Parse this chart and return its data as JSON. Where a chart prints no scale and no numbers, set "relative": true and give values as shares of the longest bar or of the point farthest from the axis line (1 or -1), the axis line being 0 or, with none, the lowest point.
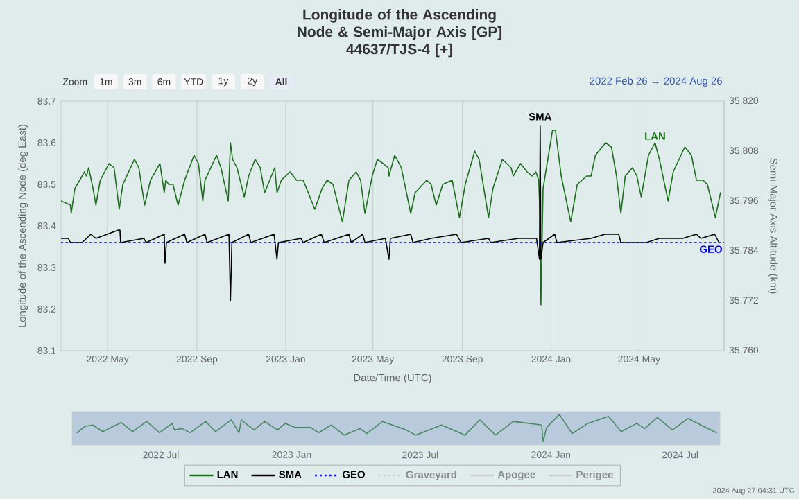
{
  "chart_data": [
    {
      "type": "line",
      "title": "Longitude of the Ascending Node & Semi-Major Axis [GP]",
      "subtitle": "44637/TJS-4 [+]",
      "xlabel": "Date/Time (UTC)",
      "ylabel": "Longitude of the Ascending Node (deg East)",
      "y2label": "Semi-Major Axis Altitude (km)",
      "annotations": [
        "Zoom",
        "1m",
        "3m",
        "6m",
        "YTD",
        "1y",
        "2y",
        "All",
        "2022 Feb 26 → 2024 Aug 26",
        "2024 Aug 27 04:31 UTC"
      ],
      "xlim": [
        "2022-02-26",
        "2024-08-26"
      ],
      "xticks": [
        {
          "value": "2022-05-01",
          "label": "2022 May"
        },
        {
          "value": "2022-09-01",
          "label": "2022 Sep"
        },
        {
          "value": "2023-01-01",
          "label": "2023 Jan"
        },
        {
          "value": "2023-05-01",
          "label": "2023 May"
        },
        {
          "value": "2023-09-01",
          "label": "2023 Sep"
        },
        {
          "value": "2024-01-01",
          "label": "2024 Jan"
        },
        {
          "value": "2024-05-01",
          "label": "2024 May"
        }
      ],
      "ylim": [
        83.1,
        83.7
      ],
      "yticks": [
        83.1,
        83.2,
        83.3,
        83.4,
        83.5,
        83.6,
        83.7
      ],
      "y2lim": [
        35760,
        35820
      ],
      "y2ticks": [
        {
          "value": 35760,
          "label": "35,760"
        },
        {
          "value": 35772,
          "label": "35,772"
        },
        {
          "value": 35784,
          "label": "35,784"
        },
        {
          "value": 35796,
          "label": "35,796"
        },
        {
          "value": 35808,
          "label": "35,808"
        },
        {
          "value": 35820,
          "label": "35,820"
        }
      ],
      "grid": "x",
      "legend": "bottom",
      "series": [
        {
          "name": "LAN",
          "color": "#1b6e1b",
          "x": [
            "2022-02-26",
            "2022-03-11",
            "2022-03-12",
            "2022-03-17",
            "2022-03-27",
            "2022-03-30",
            "2022-04-02",
            "2022-04-05",
            "2022-04-11",
            "2022-04-15",
            "2022-04-21",
            "2022-05-03",
            "2022-05-10",
            "2022-05-17",
            "2022-05-22",
            "2022-06-07",
            "2022-06-13",
            "2022-06-21",
            "2022-06-29",
            "2022-07-12",
            "2022-07-18",
            "2022-07-20",
            "2022-07-24",
            "2022-07-30",
            "2022-08-06",
            "2022-08-15",
            "2022-08-28",
            "2022-09-03",
            "2022-09-09",
            "2022-09-12",
            "2022-09-28",
            "2022-10-04",
            "2022-10-14",
            "2022-10-17",
            "2022-10-20",
            "2022-10-26",
            "2022-11-05",
            "2022-11-11",
            "2022-11-20",
            "2022-11-27",
            "2022-12-03",
            "2022-12-17",
            "2022-12-20",
            "2022-12-26",
            "2023-01-07",
            "2023-01-16",
            "2023-01-25",
            "2023-02-01",
            "2023-02-10",
            "2023-02-20",
            "2023-02-27",
            "2023-03-07",
            "2023-03-20",
            "2023-03-29",
            "2023-04-08",
            "2023-04-14",
            "2023-04-20",
            "2023-04-30",
            "2023-05-07",
            "2023-05-15",
            "2023-05-22",
            "2023-05-23",
            "2023-05-31",
            "2023-06-09",
            "2023-06-22",
            "2023-06-28",
            "2023-07-14",
            "2023-07-20",
            "2023-07-27",
            "2023-08-05",
            "2023-08-18",
            "2023-08-28",
            "2023-09-05",
            "2023-09-18",
            "2023-09-24",
            "2023-10-07",
            "2023-10-13",
            "2023-10-26",
            "2023-11-01",
            "2023-11-07",
            "2023-11-10",
            "2023-11-20",
            "2023-11-29",
            "2023-12-06",
            "2023-12-11",
            "2023-12-15",
            "2023-12-17",
            "2023-12-18",
            "2023-12-21",
            "2024-01-03",
            "2024-01-07",
            "2024-01-15",
            "2024-01-28",
            "2024-02-06",
            "2024-02-19",
            "2024-02-25",
            "2024-03-02",
            "2024-03-16",
            "2024-03-24",
            "2024-03-31",
            "2024-04-06",
            "2024-04-12",
            "2024-04-22",
            "2024-04-28",
            "2024-05-04",
            "2024-05-14",
            "2024-05-23",
            "2024-05-29",
            "2024-06-10",
            "2024-06-17",
            "2024-07-03",
            "2024-07-12",
            "2024-07-19",
            "2024-07-28",
            "2024-08-03",
            "2024-08-14",
            "2024-08-21"
          ],
          "values": [
            83.46,
            83.45,
            83.43,
            83.49,
            83.52,
            83.53,
            83.52,
            83.54,
            83.49,
            83.45,
            83.51,
            83.55,
            83.54,
            83.44,
            83.5,
            83.56,
            83.54,
            83.45,
            83.51,
            83.55,
            83.48,
            83.51,
            83.5,
            83.5,
            83.45,
            83.51,
            83.57,
            83.55,
            83.46,
            83.51,
            83.57,
            83.54,
            83.46,
            83.6,
            83.56,
            83.54,
            83.47,
            83.52,
            83.56,
            83.54,
            83.48,
            83.54,
            83.48,
            83.51,
            83.53,
            83.51,
            83.51,
            83.48,
            83.44,
            83.49,
            83.51,
            83.5,
            83.41,
            83.51,
            83.53,
            83.51,
            83.43,
            83.52,
            83.56,
            83.55,
            83.54,
            83.52,
            83.57,
            83.54,
            83.43,
            83.48,
            83.51,
            83.5,
            83.45,
            83.5,
            83.51,
            83.42,
            83.5,
            83.58,
            83.56,
            83.42,
            83.49,
            83.56,
            83.55,
            83.54,
            83.52,
            83.55,
            83.53,
            83.52,
            83.53,
            83.51,
            83.41,
            83.21,
            83.49,
            83.63,
            83.63,
            83.52,
            83.41,
            83.5,
            83.52,
            83.52,
            83.57,
            83.6,
            83.59,
            83.52,
            83.43,
            83.52,
            83.54,
            83.52,
            83.47,
            83.57,
            83.6,
            83.56,
            83.46,
            83.53,
            83.59,
            83.57,
            83.51,
            83.51,
            83.5,
            83.42,
            83.48
          ]
        },
        {
          "name": "SMA",
          "color": "#000000",
          "axis": "y2",
          "x": [
            "2022-02-26",
            "2022-03-08",
            "2022-03-11",
            "2022-03-27",
            "2022-04-08",
            "2022-04-15",
            "2022-05-16",
            "2022-05-18",
            "2022-05-19",
            "2022-06-20",
            "2022-06-23",
            "2022-07-18",
            "2022-07-19",
            "2022-07-21",
            "2022-08-15",
            "2022-08-18",
            "2022-09-12",
            "2022-09-15",
            "2022-10-15",
            "2022-10-17",
            "2022-10-19",
            "2022-11-11",
            "2022-11-14",
            "2022-12-16",
            "2022-12-20",
            "2022-12-22",
            "2023-01-22",
            "2023-01-25",
            "2023-02-19",
            "2023-02-23",
            "2023-03-29",
            "2023-04-01",
            "2023-04-17",
            "2023-04-20",
            "2023-05-18",
            "2023-05-23",
            "2023-05-25",
            "2023-06-22",
            "2023-06-25",
            "2023-07-20",
            "2023-08-24",
            "2023-08-30",
            "2023-10-07",
            "2023-10-10",
            "2023-11-17",
            "2023-12-12",
            "2023-12-16",
            "2023-12-17",
            "2023-12-18",
            "2023-12-21",
            "2024-01-06",
            "2024-01-09",
            "2024-02-25",
            "2024-03-15",
            "2024-04-03",
            "2024-04-06",
            "2024-05-11",
            "2024-05-29",
            "2024-06-30",
            "2024-07-19",
            "2024-07-25",
            "2024-08-13",
            "2024-08-19"
          ],
          "values": [
            35787,
            35787,
            35786,
            35786,
            35788,
            35787,
            35789,
            35789,
            35786,
            35787,
            35786,
            35788,
            35781,
            35786,
            35788,
            35786,
            35788,
            35786,
            35788,
            35772,
            35786,
            35788,
            35786,
            35788,
            35782,
            35786,
            35787,
            35786,
            35788,
            35786,
            35788,
            35786,
            35788,
            35786,
            35787,
            35782,
            35787,
            35788,
            35786,
            35787,
            35788,
            35786,
            35787,
            35786,
            35787,
            35787,
            35782,
            35814,
            35782,
            35786,
            35788,
            35786,
            35787,
            35788,
            35788,
            35786,
            35786,
            35787,
            35787,
            35788,
            35787,
            35788,
            35786
          ]
        },
        {
          "name": "GEO",
          "color": "#0000ff",
          "axis": "y2",
          "line_style": "dotted",
          "x": [
            "2022-02-26",
            "2024-08-26"
          ],
          "values": [
            35786,
            35786
          ]
        },
        {
          "name": "Graveyard",
          "color": "#cccccc",
          "line_style": "dotted"
        },
        {
          "name": "Apogee",
          "color": "#cccccc"
        },
        {
          "name": "Perigee",
          "color": "#cccccc"
        }
      ]
    },
    {
      "type": "line",
      "relative": true,
      "tick_labels": "x",
      "color": "#4a8a63",
      "xlim": [
        "2022-02-26",
        "2024-08-26"
      ],
      "xticks": [
        {
          "value": "2022-07-01",
          "label": "2022 Jul"
        },
        {
          "value": "2023-01-01",
          "label": "2023 Jan"
        },
        {
          "value": "2023-07-01",
          "label": "2023 Jul"
        },
        {
          "value": "2024-01-01",
          "label": "2024 Jan"
        },
        {
          "value": "2024-07-01",
          "label": "2024 Jul"
        }
      ],
      "x": [
        "2022-03-05",
        "2022-03-16",
        "2022-03-27",
        "2022-04-10",
        "2022-05-06",
        "2022-05-22",
        "2022-06-11",
        "2022-06-29",
        "2022-07-17",
        "2022-07-20",
        "2022-07-31",
        "2022-08-11",
        "2022-09-02",
        "2022-09-16",
        "2022-10-08",
        "2022-10-19",
        "2022-10-22",
        "2022-11-09",
        "2022-11-24",
        "2022-12-12",
        "2022-12-23",
        "2023-01-06",
        "2023-01-28",
        "2023-02-08",
        "2023-02-26",
        "2023-03-16",
        "2023-04-07",
        "2023-04-17",
        "2023-05-09",
        "2023-06-11",
        "2023-06-25",
        "2023-07-31",
        "2023-09-02",
        "2023-09-23",
        "2023-10-15",
        "2023-11-09",
        "2023-12-01",
        "2023-12-19",
        "2023-12-21",
        "2023-12-26",
        "2024-01-13",
        "2024-01-31",
        "2024-02-22",
        "2024-03-22",
        "2024-04-09",
        "2024-05-01",
        "2024-05-12",
        "2024-05-30",
        "2024-06-20",
        "2024-07-12",
        "2024-08-03",
        "2024-08-21"
      ],
      "values": [
        0.33,
        0.56,
        0.61,
        0.37,
        0.7,
        0.37,
        0.74,
        0.33,
        0.67,
        0.43,
        0.48,
        0.33,
        0.74,
        0.37,
        0.8,
        0.33,
        0.8,
        0.43,
        0.74,
        0.43,
        0.67,
        0.52,
        0.52,
        0.33,
        0.61,
        0.24,
        0.48,
        0.3,
        0.74,
        0.43,
        0.24,
        0.61,
        0.24,
        0.8,
        0.24,
        0.74,
        0.67,
        0.61,
        0,
        0.52,
        1,
        0.3,
        0.67,
        0.93,
        0.37,
        0.67,
        0.48,
        0.89,
        0.43,
        0.85,
        0.56,
        0.33
      ]
    }
  ]
}
